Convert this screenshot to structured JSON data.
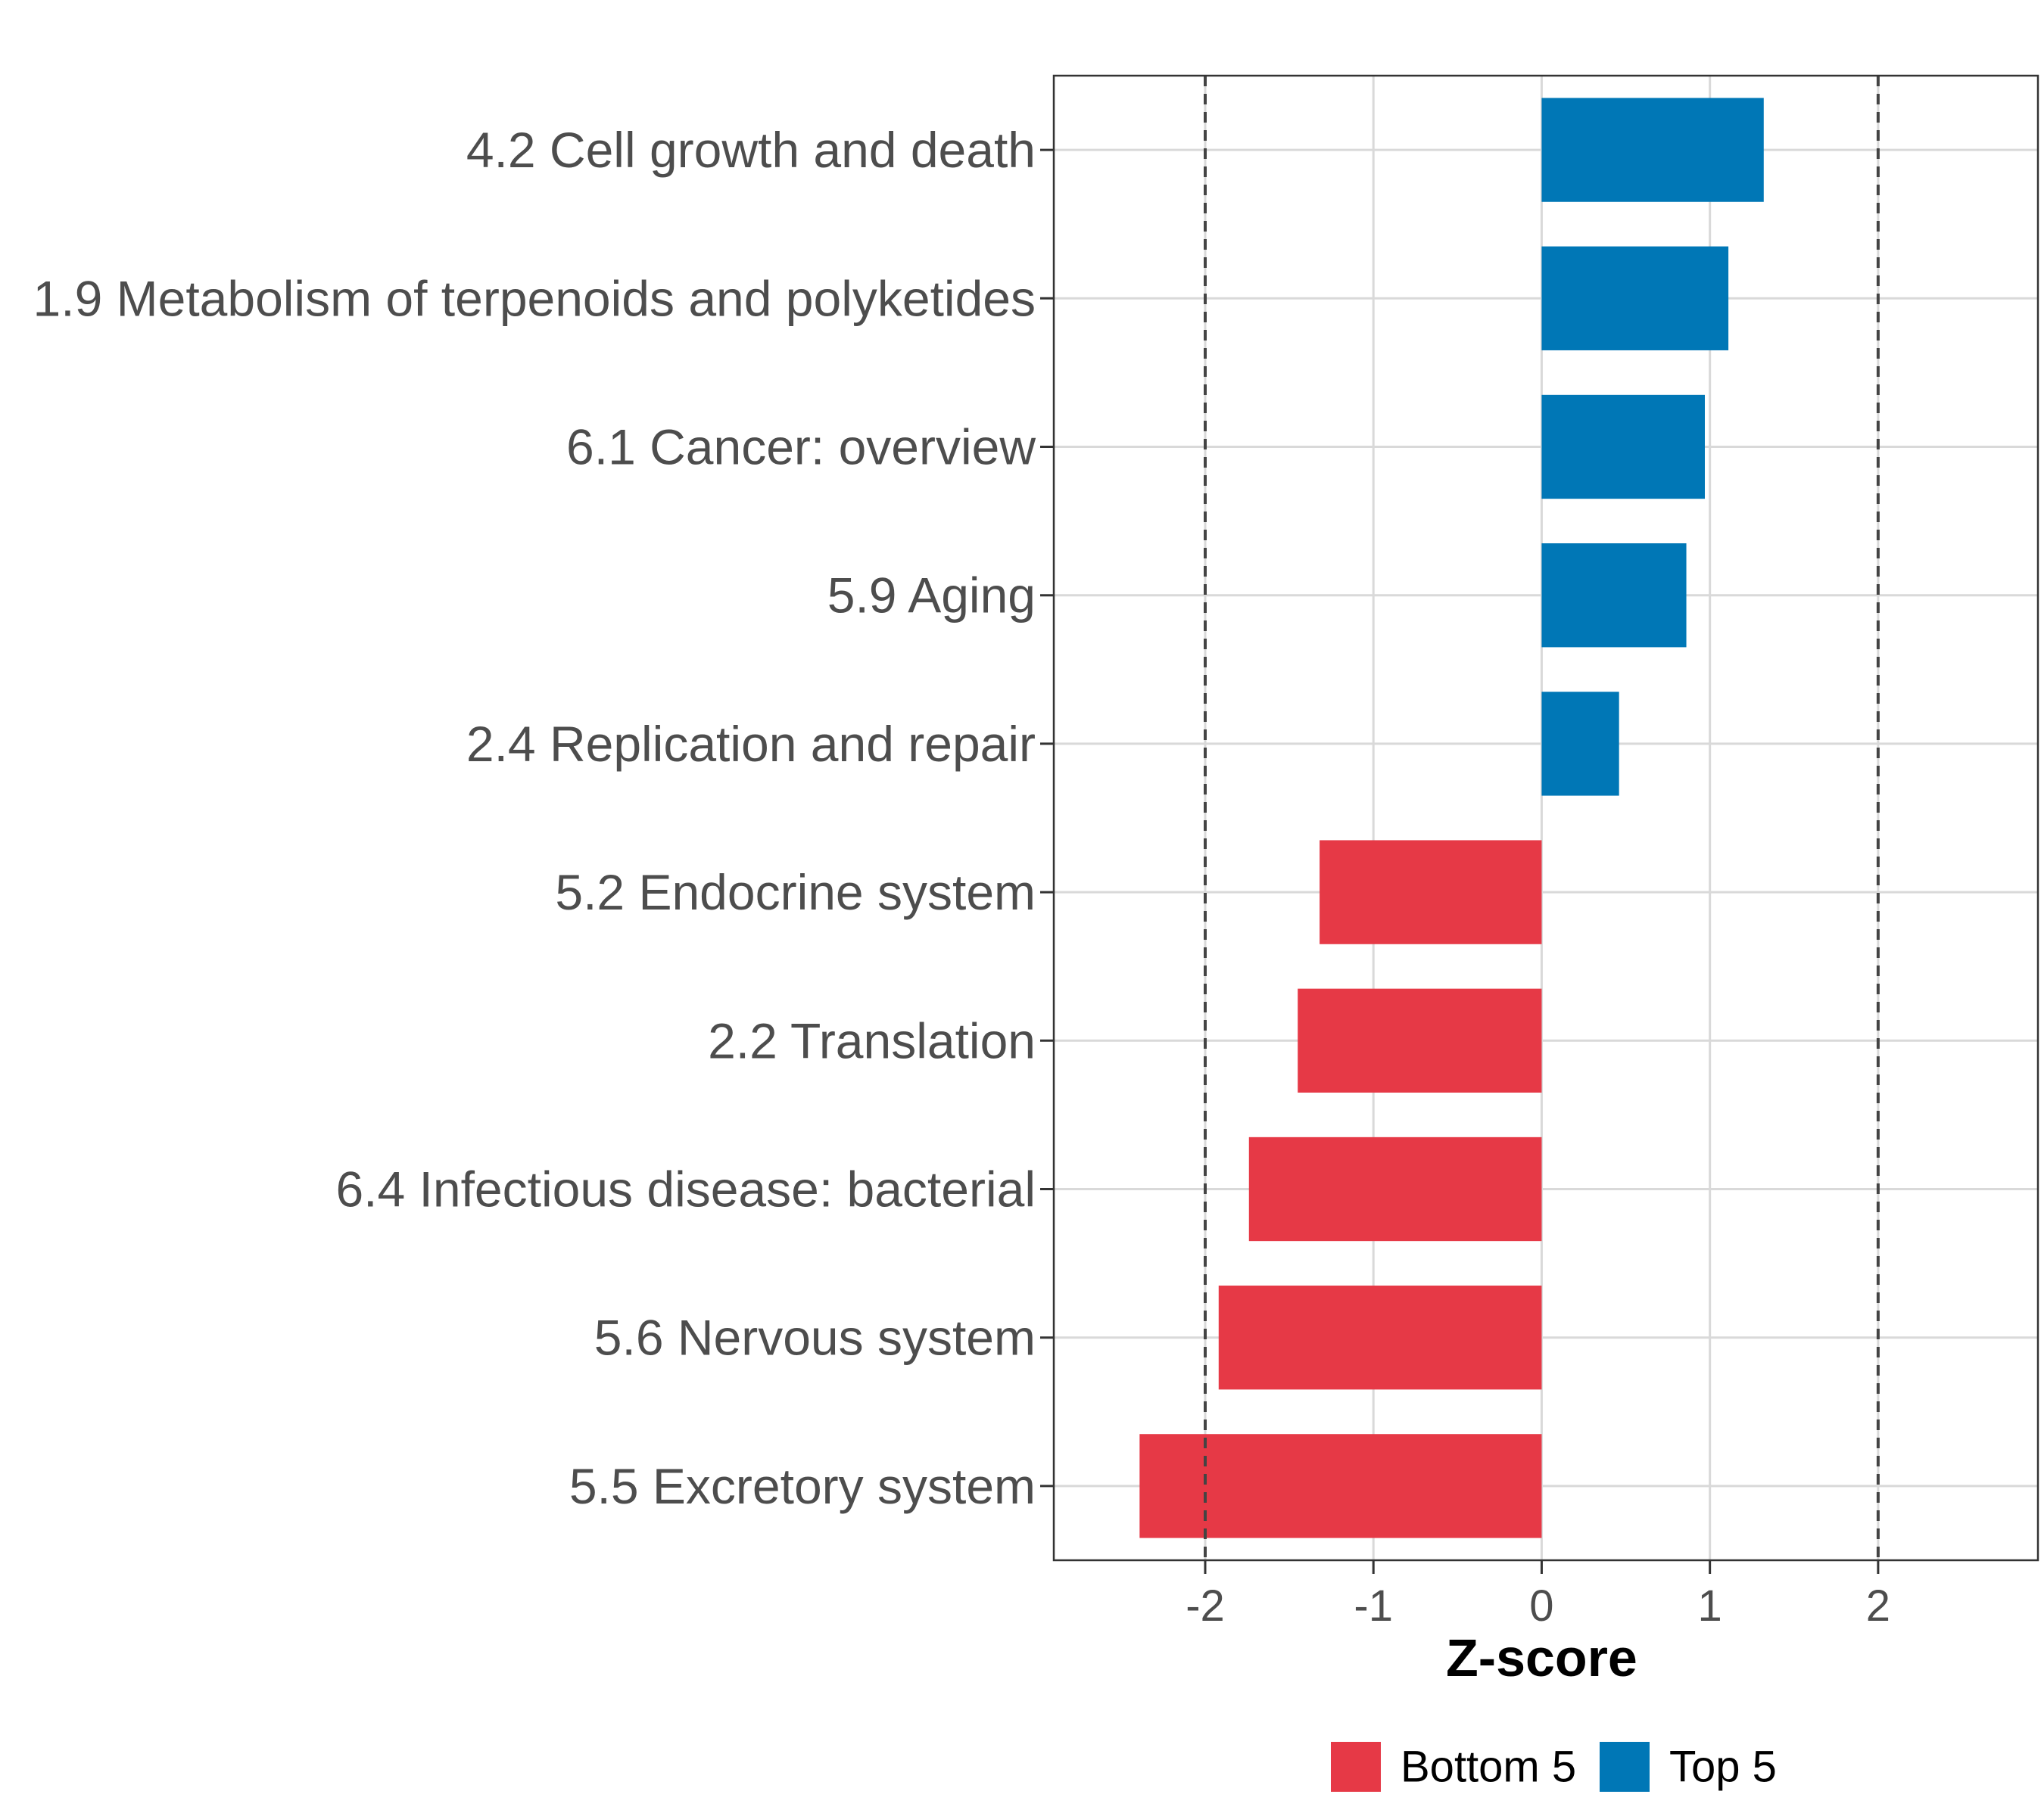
{
  "chart_data": {
    "type": "bar",
    "orientation": "horizontal",
    "title": "",
    "xlabel": "Z-score",
    "ylabel": "",
    "xlim": [
      -2.9,
      2.95
    ],
    "x_ticks": [
      -2,
      -1,
      0,
      1,
      2
    ],
    "x_tick_labels": [
      "-2",
      "-1",
      "0",
      "1",
      "2"
    ],
    "reference_lines": [
      -2,
      2
    ],
    "grid": true,
    "legend_position": "bottom",
    "legend": [
      {
        "name": "Bottom 5",
        "color": "#e63946"
      },
      {
        "name": "Top 5",
        "color": "#0077b6"
      }
    ],
    "categories": [
      "4.2 Cell growth and death",
      "1.9 Metabolism of terpenoids and polyketides",
      "6.1 Cancer: overview",
      "5.9 Aging",
      "2.4 Replication and repair",
      "5.2 Endocrine system",
      "2.2 Translation",
      "6.4 Infectious disease: bacterial",
      "5.6 Nervous system",
      "5.5 Excretory system"
    ],
    "values": [
      1.32,
      1.11,
      0.97,
      0.86,
      0.46,
      -1.32,
      -1.45,
      -1.74,
      -1.92,
      -2.39
    ],
    "groups": [
      "Top 5",
      "Top 5",
      "Top 5",
      "Top 5",
      "Top 5",
      "Bottom 5",
      "Bottom 5",
      "Bottom 5",
      "Bottom 5",
      "Bottom 5"
    ]
  }
}
